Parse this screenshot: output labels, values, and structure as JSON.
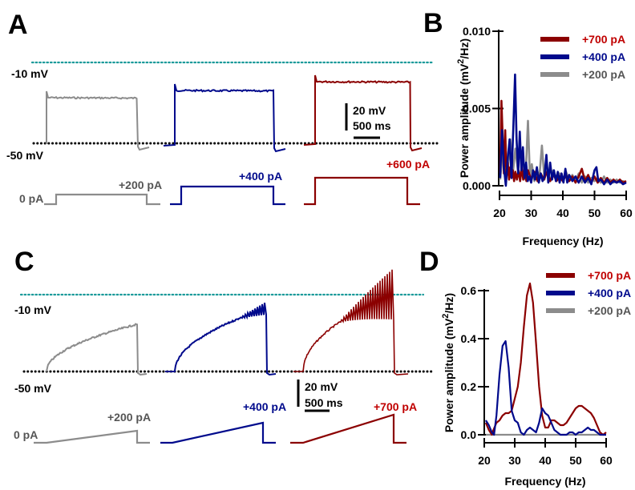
{
  "figure": {
    "panels": {
      "A": {
        "letter": "A",
        "protocol": "step current injection",
        "ref_top_label": "-10 mV",
        "ref_bottom_label": "-50 mV",
        "scalebar": {
          "voltage": "20 mV",
          "time": "500 ms"
        },
        "current_labels": {
          "zero": "0 pA",
          "gray": "+200 pA",
          "blue": "+400 pA",
          "red": "+600 pA"
        }
      },
      "C": {
        "letter": "C",
        "protocol": "ramp current injection",
        "ref_top_label": "-10 mV",
        "ref_bottom_label": "-50 mV",
        "scalebar": {
          "voltage": "20 mV",
          "time": "500 ms"
        },
        "current_labels": {
          "zero": "0 pA",
          "gray": "+200 pA",
          "blue": "+400 pA",
          "red": "+700 pA"
        }
      },
      "B": {
        "letter": "B"
      },
      "D": {
        "letter": "D"
      }
    },
    "colors": {
      "gray": "#8c8c8c",
      "blue": "#000a8c",
      "red": "#8b0000",
      "teal": "#1a9a9a",
      "black": "#000000"
    }
  },
  "chart_data": [
    {
      "panel": "B",
      "type": "line",
      "title": "",
      "xlabel": "Frequency (Hz)",
      "ylabel": "Power amplitude (mV2/Hz)",
      "ylabel_parts": {
        "pre": "Power amplitude (mV",
        "sup": "2",
        "post": "/Hz)"
      },
      "xlim": [
        20,
        60
      ],
      "ylim": [
        0,
        0.01
      ],
      "xticks": [
        20,
        30,
        40,
        50,
        60
      ],
      "xtick_labels": [
        "20",
        "30",
        "40",
        "50",
        "60"
      ],
      "yticks": [
        0.0,
        0.005,
        0.01
      ],
      "ytick_labels": [
        "0.000",
        "0.005",
        "0.010"
      ],
      "legend": {
        "placement": "top-right",
        "entries": [
          "+700 pA",
          "+400 pA",
          "+200 pA"
        ]
      },
      "series": [
        {
          "name": "+700 pA",
          "color": "#8b0000",
          "x": [
            20.2,
            20.6,
            21.0,
            21.4,
            21.8,
            22.2,
            22.6,
            23.0,
            23.4,
            23.8,
            24.2,
            24.6,
            25.0,
            25.5,
            26.0,
            26.5,
            27.0,
            27.5,
            28.0,
            28.5,
            29.0,
            30.0,
            31.0,
            32.0,
            33.0,
            34.0,
            35.0,
            36.0,
            37.0,
            38.0,
            39.0,
            40.0,
            41.0,
            42.0,
            43.0,
            44.0,
            45.0,
            46.0,
            47.0,
            48.0,
            49.0,
            50.0,
            51.0,
            52.0,
            53.0,
            54.0,
            55.0,
            56.0,
            57.0,
            58.0,
            59.0,
            60.0
          ],
          "y": [
            0.0008,
            0.0055,
            0.003,
            0.0008,
            0.0036,
            0.0006,
            0.0015,
            0.0004,
            0.0012,
            0.0005,
            0.001,
            0.0003,
            0.0009,
            0.0004,
            0.001,
            0.0003,
            0.0012,
            0.0004,
            0.0009,
            0.0003,
            0.001,
            0.0004,
            0.0009,
            0.0003,
            0.0008,
            0.0004,
            0.0009,
            0.0003,
            0.0008,
            0.0003,
            0.0006,
            0.0003,
            0.0007,
            0.0003,
            0.0006,
            0.0002,
            0.0006,
            0.0011,
            0.0003,
            0.0007,
            0.0002,
            0.0006,
            0.0002,
            0.0005,
            0.0002,
            0.0005,
            0.0002,
            0.0004,
            0.0002,
            0.0004,
            0.0002,
            0.0003
          ]
        },
        {
          "name": "+400 pA",
          "color": "#000a8c",
          "x": [
            20.2,
            20.8,
            21.4,
            22.0,
            22.6,
            23.2,
            23.8,
            24.4,
            24.9,
            25.4,
            25.9,
            26.4,
            26.9,
            27.4,
            27.9,
            28.4,
            28.9,
            29.4,
            30.0,
            30.6,
            31.2,
            31.8,
            32.4,
            33.0,
            33.6,
            34.2,
            34.8,
            35.4,
            36.0,
            36.6,
            37.2,
            37.8,
            38.4,
            39.0,
            39.6,
            40.2,
            40.8,
            41.4,
            42.0,
            43.0,
            44.0,
            45.0,
            46.0,
            47.0,
            48.0,
            49.0,
            50.0,
            50.6,
            51.2,
            52.0,
            53.0,
            54.0,
            55.0,
            56.0,
            57.0,
            58.0,
            59.0,
            60.0
          ],
          "y": [
            0.0005,
            0.0036,
            0.0012,
            0.0,
            0.0018,
            0.003,
            0.0005,
            0.004,
            0.0072,
            0.003,
            0.0008,
            0.0035,
            0.001,
            0.0025,
            0.0005,
            0.0015,
            0.0003,
            0.0006,
            0.0002,
            0.001,
            0.0004,
            0.0012,
            0.0002,
            0.0008,
            0.0003,
            0.0006,
            0.002,
            0.0002,
            0.0015,
            0.0004,
            0.001,
            0.0003,
            0.0009,
            0.0002,
            0.0008,
            0.0002,
            0.0011,
            0.0002,
            0.0007,
            0.0003,
            0.0006,
            0.0002,
            0.0006,
            0.0002,
            0.0005,
            0.0001,
            0.001,
            0.0012,
            0.0003,
            0.0004,
            0.0001,
            0.0004,
            0.0001,
            0.0003,
            0.0002,
            0.0003,
            0.0001,
            0.0002
          ]
        },
        {
          "name": "+200 pA",
          "color": "#8c8c8c",
          "x": [
            20.2,
            21.0,
            21.8,
            22.6,
            23.4,
            24.2,
            25.0,
            25.8,
            26.6,
            27.4,
            28.2,
            29.0,
            29.6,
            30.2,
            31.0,
            31.8,
            32.6,
            33.4,
            34.2,
            35.0,
            36.0,
            37.0,
            38.0,
            39.0,
            40.0,
            41.0,
            42.0,
            43.0,
            44.0,
            45.0,
            46.0,
            47.0,
            48.0,
            49.0,
            50.0,
            51.0,
            52.0,
            53.0,
            54.0,
            55.0,
            56.0,
            57.0,
            58.0,
            59.0,
            60.0
          ],
          "y": [
            0.0004,
            0.0022,
            0.0006,
            0.0012,
            0.003,
            0.0008,
            0.0024,
            0.001,
            0.0005,
            0.0018,
            0.0004,
            0.0042,
            0.0006,
            0.0014,
            0.0003,
            0.001,
            0.0006,
            0.0026,
            0.0004,
            0.0012,
            0.0003,
            0.001,
            0.0004,
            0.0008,
            0.0003,
            0.0009,
            0.0003,
            0.0007,
            0.0003,
            0.0008,
            0.0002,
            0.0006,
            0.0002,
            0.0005,
            0.0003,
            0.0005,
            0.0002,
            0.0006,
            0.0002,
            0.0004,
            0.0002,
            0.0004,
            0.0002,
            0.0003,
            0.0002
          ]
        }
      ]
    },
    {
      "panel": "D",
      "type": "line",
      "title": "",
      "xlabel": "Frequency (Hz)",
      "ylabel": "Power amplitude (mV2/Hz)",
      "ylabel_parts": {
        "pre": "Power amplitude (mV",
        "sup": "2",
        "post": "/Hz)"
      },
      "xlim": [
        20,
        60
      ],
      "ylim": [
        0,
        0.6
      ],
      "xticks": [
        20,
        30,
        40,
        50,
        60
      ],
      "xtick_labels": [
        "20",
        "30",
        "40",
        "50",
        "60"
      ],
      "yticks": [
        0.0,
        0.2,
        0.4,
        0.6
      ],
      "ytick_labels": [
        "0.0",
        "0.2",
        "0.4",
        "0.6"
      ],
      "legend": {
        "placement": "top-right",
        "entries": [
          "+700 pA",
          "+400 pA",
          "+200 pA"
        ]
      },
      "series": [
        {
          "name": "+700 pA",
          "color": "#8b0000",
          "x": [
            20.5,
            21.5,
            22.5,
            23.0,
            24.0,
            25.0,
            26.0,
            27.0,
            28.0,
            29.0,
            30.0,
            31.0,
            32.0,
            33.0,
            34.0,
            35.0,
            36.0,
            37.0,
            38.0,
            39.0,
            40.0,
            41.0,
            42.0,
            43.0,
            44.0,
            45.0,
            46.0,
            47.0,
            48.0,
            49.0,
            50.0,
            51.0,
            52.0,
            53.0,
            54.0,
            55.0,
            56.0,
            57.0,
            58.0,
            59.0,
            60.0
          ],
          "y": [
            0.05,
            0.02,
            0.0,
            0.02,
            0.05,
            0.06,
            0.08,
            0.09,
            0.09,
            0.1,
            0.15,
            0.2,
            0.3,
            0.45,
            0.58,
            0.63,
            0.55,
            0.38,
            0.2,
            0.08,
            0.03,
            0.03,
            0.06,
            0.06,
            0.05,
            0.04,
            0.04,
            0.05,
            0.07,
            0.09,
            0.11,
            0.12,
            0.12,
            0.11,
            0.1,
            0.09,
            0.07,
            0.04,
            0.01,
            0.0,
            0.01
          ]
        },
        {
          "name": "+400 pA",
          "color": "#000a8c",
          "x": [
            20.5,
            21.5,
            22.5,
            23.2,
            24.0,
            25.0,
            26.0,
            27.0,
            28.0,
            29.0,
            30.0,
            31.0,
            32.0,
            33.0,
            34.0,
            35.0,
            36.0,
            37.0,
            38.0,
            39.0,
            40.0,
            41.0,
            42.0,
            43.0,
            44.0,
            45.0,
            46.0,
            47.0,
            48.0,
            49.0,
            50.0,
            51.0,
            52.0,
            53.0,
            54.0,
            55.0,
            56.0,
            57.0,
            58.0,
            59.0,
            60.0
          ],
          "y": [
            0.06,
            0.04,
            0.01,
            0.0,
            0.08,
            0.25,
            0.37,
            0.39,
            0.28,
            0.1,
            0.06,
            0.05,
            0.01,
            0.0,
            0.02,
            0.03,
            0.02,
            0.01,
            0.05,
            0.11,
            0.09,
            0.08,
            0.05,
            0.02,
            0.01,
            0.0,
            0.0,
            0.0,
            0.01,
            0.01,
            0.0,
            0.01,
            0.01,
            0.02,
            0.03,
            0.02,
            0.02,
            0.01,
            0.0,
            0.0,
            0.0
          ]
        },
        {
          "name": "+200 pA",
          "color": "#8c8c8c",
          "x": [
            20.5,
            30.0,
            40.0,
            50.0,
            60.0
          ],
          "y": [
            0.0,
            0.0,
            0.0,
            0.0,
            0.0
          ]
        }
      ]
    }
  ]
}
